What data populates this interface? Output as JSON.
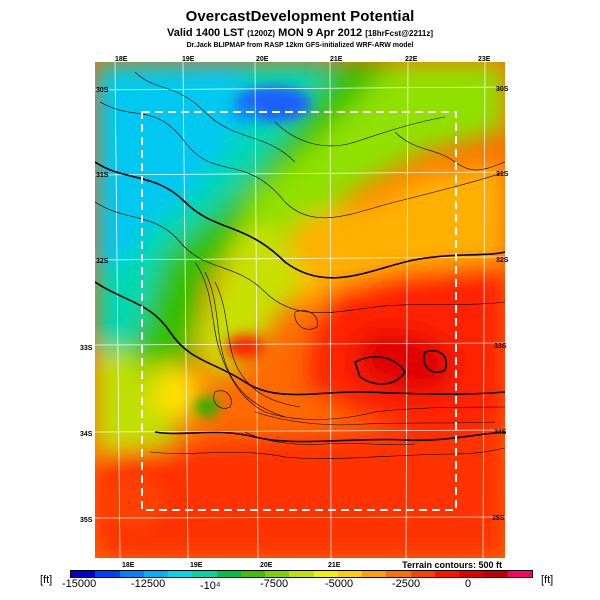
{
  "header": {
    "title": "OvercastDevelopment Potential",
    "subtitle_main": "Valid 1400 LST",
    "subtitle_small1": "(1200Z)",
    "subtitle_main2": "MON 9 Apr 2012",
    "subtitle_small2": "[18hrFcst@2211z]",
    "credit": "Dr.Jack BLIPMAP from RASP 12km GFS-initialized WRF-ARW model"
  },
  "map": {
    "lon_ticks_top": [
      "18E",
      "19E",
      "20E",
      "21E",
      "22E",
      "23E"
    ],
    "lon_ticks_bottom": [
      "18E",
      "19E",
      "20E",
      "21E"
    ],
    "lat_ticks_right": [
      "30S",
      "31S",
      "32S",
      "33S",
      "34S",
      "35S"
    ],
    "lat_ticks_left": [
      "30S",
      "31S",
      "32S",
      "33S",
      "34S",
      "35S"
    ],
    "terrain_note": "Terrain contours: 500 ft",
    "boundary_style": "dashed white rectangle"
  },
  "colorbar": {
    "unit_left": "[ft]",
    "unit_right": "[ft]",
    "labels": [
      "-15000",
      "-12500",
      "-10⁴",
      "-7500",
      "-5000",
      "-2500",
      "0"
    ],
    "colors": [
      "#0000d0",
      "#0040ff",
      "#0080ff",
      "#00b0ff",
      "#00d8e8",
      "#00d8a0",
      "#00c040",
      "#40c000",
      "#80d000",
      "#c0e000",
      "#f0f000",
      "#ffd000",
      "#ffa000",
      "#ff7000",
      "#ff4000",
      "#ff1000",
      "#e00000",
      "#c00000",
      "#ff0060"
    ]
  }
}
